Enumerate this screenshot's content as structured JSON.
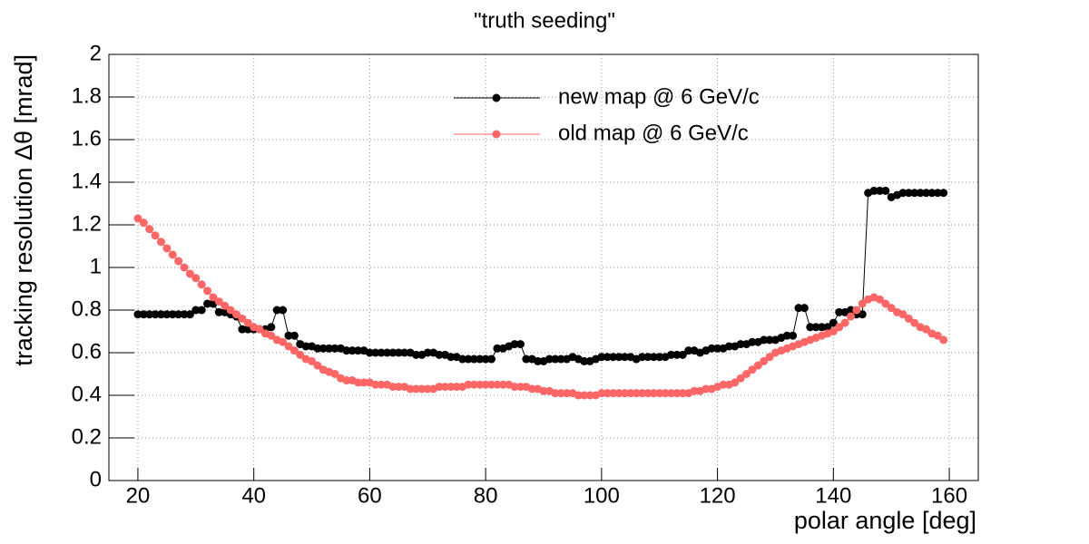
{
  "chart_data": {
    "type": "line",
    "title": "\"truth seeding\"",
    "x_label": "polar angle [deg]",
    "y_label": "tracking resolution  Δθ [mrad]",
    "x": [
      20,
      21,
      22,
      23,
      24,
      25,
      26,
      27,
      28,
      29,
      30,
      31,
      32,
      33,
      34,
      35,
      36,
      37,
      38,
      39,
      40,
      41,
      42,
      43,
      44,
      45,
      46,
      47,
      48,
      49,
      50,
      51,
      52,
      53,
      54,
      55,
      56,
      57,
      58,
      59,
      60,
      61,
      62,
      63,
      64,
      65,
      66,
      67,
      68,
      69,
      70,
      71,
      72,
      73,
      74,
      75,
      76,
      77,
      78,
      79,
      80,
      81,
      82,
      83,
      84,
      85,
      86,
      87,
      88,
      89,
      90,
      91,
      92,
      93,
      94,
      95,
      96,
      97,
      98,
      99,
      100,
      101,
      102,
      103,
      104,
      105,
      106,
      107,
      108,
      109,
      110,
      111,
      112,
      113,
      114,
      115,
      116,
      117,
      118,
      119,
      120,
      121,
      122,
      123,
      124,
      125,
      126,
      127,
      128,
      129,
      130,
      131,
      132,
      133,
      134,
      135,
      136,
      137,
      138,
      139,
      140,
      141,
      142,
      143,
      144,
      145,
      146,
      147,
      148,
      149,
      150,
      151,
      152,
      153,
      154,
      155,
      156,
      157,
      158,
      159
    ],
    "series": [
      {
        "name": "new map @ 6 GeV/c",
        "color": "#000000",
        "values": [
          0.78,
          0.78,
          0.78,
          0.78,
          0.78,
          0.78,
          0.78,
          0.78,
          0.78,
          0.78,
          0.8,
          0.8,
          0.83,
          0.83,
          0.79,
          0.79,
          0.78,
          0.77,
          0.71,
          0.71,
          0.71,
          0.71,
          0.71,
          0.72,
          0.8,
          0.8,
          0.68,
          0.68,
          0.64,
          0.63,
          0.63,
          0.62,
          0.62,
          0.62,
          0.62,
          0.62,
          0.61,
          0.61,
          0.61,
          0.61,
          0.6,
          0.6,
          0.6,
          0.6,
          0.6,
          0.6,
          0.6,
          0.6,
          0.59,
          0.59,
          0.6,
          0.6,
          0.59,
          0.59,
          0.58,
          0.58,
          0.57,
          0.57,
          0.57,
          0.57,
          0.57,
          0.57,
          0.62,
          0.62,
          0.63,
          0.64,
          0.64,
          0.57,
          0.57,
          0.56,
          0.56,
          0.57,
          0.57,
          0.57,
          0.57,
          0.58,
          0.57,
          0.56,
          0.56,
          0.57,
          0.58,
          0.58,
          0.58,
          0.58,
          0.58,
          0.58,
          0.57,
          0.58,
          0.58,
          0.58,
          0.58,
          0.58,
          0.59,
          0.59,
          0.59,
          0.61,
          0.61,
          0.6,
          0.61,
          0.62,
          0.62,
          0.62,
          0.63,
          0.63,
          0.64,
          0.64,
          0.65,
          0.65,
          0.66,
          0.66,
          0.66,
          0.67,
          0.68,
          0.68,
          0.81,
          0.81,
          0.72,
          0.72,
          0.72,
          0.72,
          0.74,
          0.79,
          0.79,
          0.8,
          0.78,
          0.78,
          1.35,
          1.36,
          1.36,
          1.36,
          1.33,
          1.34,
          1.35,
          1.35,
          1.35,
          1.35,
          1.35,
          1.35,
          1.35,
          1.35
        ]
      },
      {
        "name": "old map @ 6 GeV/c",
        "color": "#ff6666",
        "values": [
          1.23,
          1.21,
          1.18,
          1.15,
          1.12,
          1.09,
          1.06,
          1.03,
          1.0,
          0.97,
          0.95,
          0.92,
          0.89,
          0.86,
          0.84,
          0.82,
          0.8,
          0.78,
          0.76,
          0.74,
          0.72,
          0.71,
          0.69,
          0.68,
          0.66,
          0.65,
          0.63,
          0.61,
          0.59,
          0.57,
          0.56,
          0.54,
          0.52,
          0.51,
          0.5,
          0.48,
          0.47,
          0.47,
          0.46,
          0.46,
          0.46,
          0.45,
          0.45,
          0.45,
          0.44,
          0.44,
          0.44,
          0.43,
          0.43,
          0.43,
          0.43,
          0.43,
          0.44,
          0.44,
          0.44,
          0.44,
          0.44,
          0.45,
          0.45,
          0.45,
          0.45,
          0.45,
          0.45,
          0.45,
          0.45,
          0.44,
          0.44,
          0.44,
          0.43,
          0.43,
          0.42,
          0.42,
          0.41,
          0.41,
          0.41,
          0.41,
          0.4,
          0.4,
          0.4,
          0.4,
          0.41,
          0.41,
          0.41,
          0.41,
          0.41,
          0.41,
          0.41,
          0.41,
          0.41,
          0.41,
          0.41,
          0.41,
          0.41,
          0.41,
          0.41,
          0.41,
          0.42,
          0.42,
          0.43,
          0.43,
          0.44,
          0.45,
          0.45,
          0.46,
          0.48,
          0.5,
          0.52,
          0.54,
          0.56,
          0.58,
          0.6,
          0.61,
          0.62,
          0.63,
          0.64,
          0.65,
          0.66,
          0.67,
          0.68,
          0.69,
          0.7,
          0.72,
          0.74,
          0.77,
          0.8,
          0.83,
          0.85,
          0.86,
          0.85,
          0.83,
          0.81,
          0.79,
          0.78,
          0.76,
          0.74,
          0.72,
          0.71,
          0.69,
          0.68,
          0.66
        ]
      }
    ],
    "xlim": [
      15,
      165
    ],
    "xticks": [
      20,
      40,
      60,
      80,
      100,
      120,
      140,
      160
    ],
    "ylim": [
      0,
      2
    ],
    "yticks": [
      0,
      0.2,
      0.4,
      0.6,
      0.8,
      1,
      1.2,
      1.4,
      1.6,
      1.8,
      2
    ],
    "grid": true,
    "legend": "top"
  }
}
